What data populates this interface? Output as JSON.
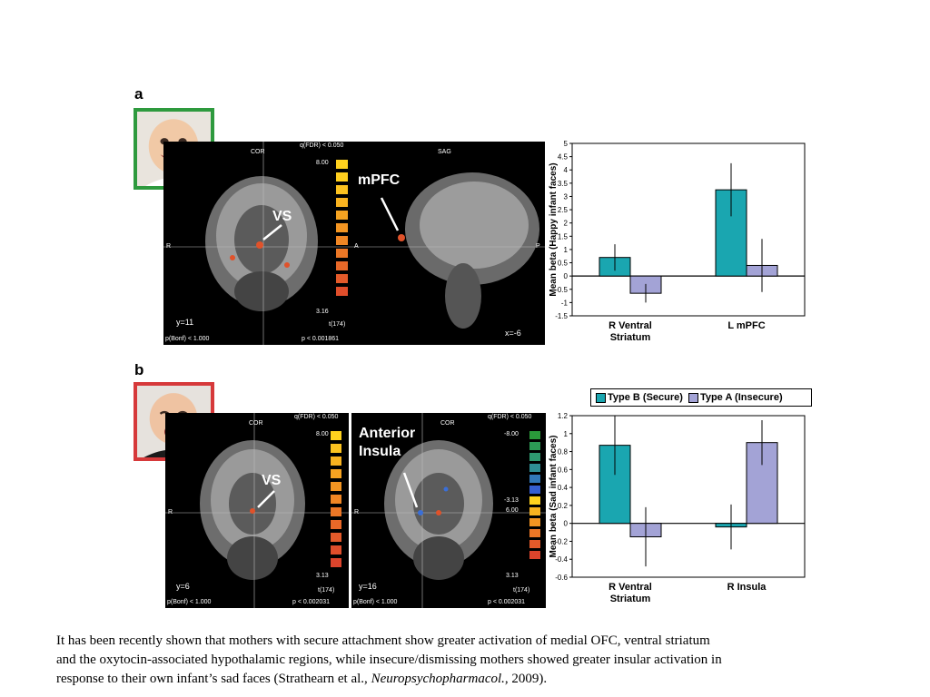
{
  "panel_a": {
    "letter": "a",
    "cor_label": "COR",
    "sag_label": "SAG",
    "qfdr": "q(FDR) < 0.050",
    "scale_top": "8.00",
    "scale_bottom": "3.16",
    "tlabel": "t(174)",
    "pbonf": "p(Bonf) < 1.000",
    "p_value": "p < 0.001861",
    "slice_cor": "y=11",
    "slice_sag": "x=-6",
    "vs_label": "VS",
    "mpfc_label": "mPFC",
    "r_label": "R",
    "a_label": "A",
    "p_label": "P"
  },
  "panel_b": {
    "letter": "b",
    "cor_label": "COR",
    "qfdr": "q(FDR) < 0.050",
    "scale_top": "8.00",
    "scale_bottom": "3.13",
    "tlabel": "t(174)",
    "pbonf": "p(Bonf) < 1.000",
    "p_value": "p < 0.002031",
    "slice_vs": "y=6",
    "slice_ins": "y=16",
    "vs_label": "VS",
    "insula_label_1": "Anterior",
    "insula_label_2": "Insula",
    "scale2_top": "-8.00",
    "scale2_mid_neg": "-3.13",
    "scale2_mid_pos": "6.00",
    "scale2_bottom": "3.13",
    "r_label": "R"
  },
  "legend": {
    "secure": "Type B (Secure)",
    "insecure": "Type A (Insecure)"
  },
  "colors": {
    "secure": "#1aa6b0",
    "insecure": "#a3a3d6",
    "green_frame": "#2e9a3e",
    "red_frame": "#d6393a"
  },
  "chart_data": [
    {
      "type": "bar",
      "ylabel": "Mean beta (Happy infant faces)",
      "categories": [
        "R Ventral Striatum",
        "L mPFC"
      ],
      "category_lines": [
        [
          "R Ventral",
          "Striatum"
        ],
        [
          "L mPFC"
        ]
      ],
      "series": [
        {
          "name": "Type B (Secure)",
          "values": [
            0.7,
            3.25
          ],
          "error": [
            0.5,
            1.0
          ]
        },
        {
          "name": "Type A (Insecure)",
          "values": [
            -0.65,
            0.4
          ],
          "error": [
            0.35,
            1.0
          ]
        }
      ],
      "ylim": [
        -1.5,
        5
      ],
      "ticks": [
        "5",
        "4.5",
        "4",
        "3.5",
        "3",
        "2.5",
        "2",
        "1.5",
        "1",
        "0.5",
        "0",
        "-0.5",
        "-1",
        "-1.5"
      ],
      "tick_values": [
        5,
        4.5,
        4,
        3.5,
        3,
        2.5,
        2,
        1.5,
        1,
        0.5,
        0,
        -0.5,
        -1,
        -1.5
      ]
    },
    {
      "type": "bar",
      "ylabel": "Mean beta (Sad infant faces)",
      "categories": [
        "R Ventral Striatum",
        "R Insula"
      ],
      "category_lines": [
        [
          "R Ventral",
          "Striatum"
        ],
        [
          "R Insula"
        ]
      ],
      "series": [
        {
          "name": "Type B (Secure)",
          "values": [
            0.87,
            -0.04
          ],
          "error": [
            0.33,
            0.25
          ]
        },
        {
          "name": "Type A (Insecure)",
          "values": [
            -0.15,
            0.9
          ],
          "error": [
            0.33,
            0.25
          ]
        }
      ],
      "ylim": [
        -0.6,
        1.2
      ],
      "ticks": [
        "1.2",
        "1",
        "0.8",
        "0.6",
        "0.4",
        "0.2",
        "0",
        "-0.2",
        "-0.4",
        "-0.6"
      ],
      "tick_values": [
        1.2,
        1,
        0.8,
        0.6,
        0.4,
        0.2,
        0,
        -0.2,
        -0.4,
        -0.6
      ]
    }
  ],
  "caption": {
    "line1": "It has been recently shown that mothers with secure attachment show greater activation of medial OFC, ventral striatum",
    "line2": "and the oxytocin-associated hypothalamic regions, while insecure/dismissing mothers showed greater insular activation in",
    "line3_pre": "response to their own infant’s sad faces (Strathearn et al., ",
    "line3_journal": "Neuropsychopharmacol.",
    "line3_post": ", 2009)."
  }
}
